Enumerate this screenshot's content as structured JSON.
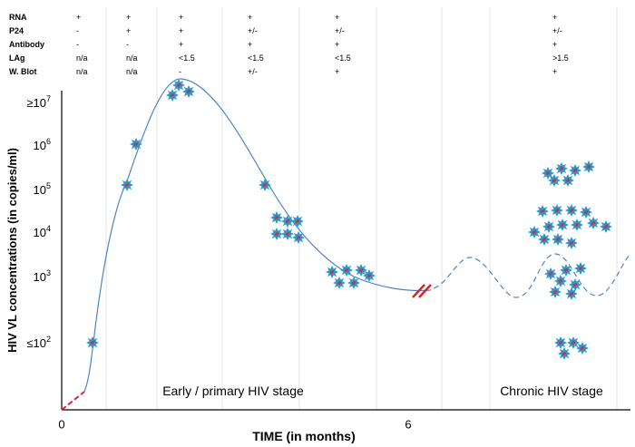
{
  "table": {
    "rows": [
      {
        "label": "RNA",
        "cells": [
          "+",
          "+",
          "+",
          "+",
          "+",
          "+"
        ]
      },
      {
        "label": "P24",
        "cells": [
          "-",
          "+",
          "+",
          "+/-",
          "+/-",
          "+/-"
        ]
      },
      {
        "label": "Antibody",
        "cells": [
          "-",
          "-",
          "+",
          "+",
          "+",
          "+"
        ]
      },
      {
        "label": "LAg",
        "cells": [
          "n/a",
          "n/a",
          "<1.5",
          "<1.5",
          "<1.5",
          ">1.5"
        ]
      },
      {
        "label": "W. Blot",
        "cells": [
          "n/a",
          "n/a",
          "-",
          "+/-",
          "+",
          "+"
        ]
      }
    ]
  },
  "axes": {
    "y_title": "HIV VL concentrations (in copies/ml)",
    "y_labels": [
      {
        "base": "≥10",
        "exp": "7"
      },
      {
        "base": "10",
        "exp": "6"
      },
      {
        "base": "10",
        "exp": "5"
      },
      {
        "base": "10",
        "exp": "4"
      },
      {
        "base": "10",
        "exp": "3"
      },
      {
        "base": "≤10",
        "exp": "2"
      }
    ],
    "x_title": "TIME (in months)",
    "x_labels": [
      "0",
      "6"
    ]
  },
  "stages": [
    "Early  / primary HIV stage",
    "Chronic HIV stage"
  ]
}
